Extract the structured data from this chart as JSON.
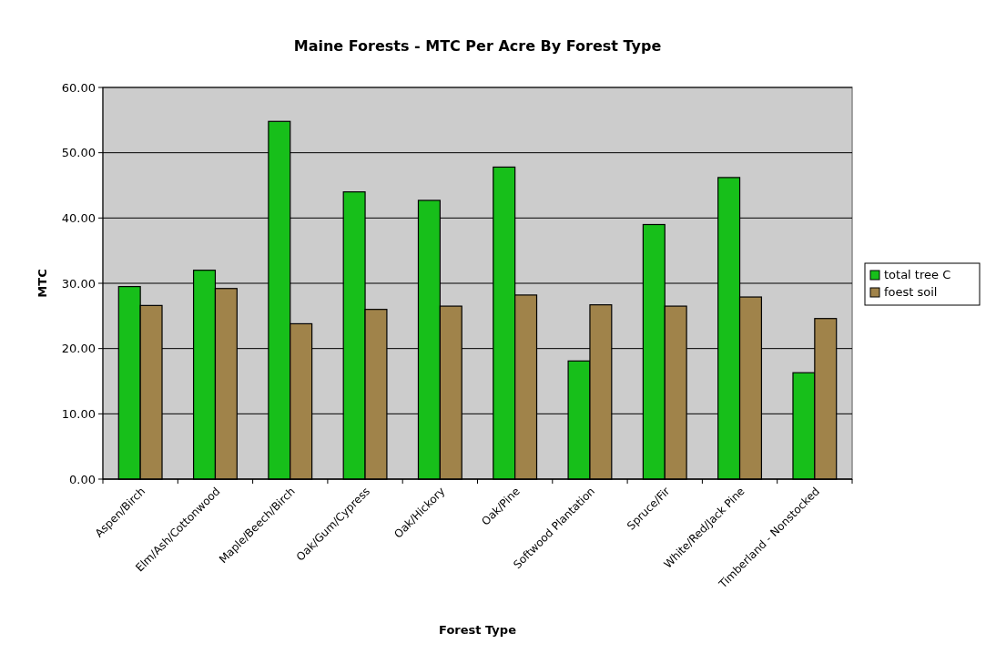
{
  "chart_data": {
    "type": "bar",
    "title": "Maine Forests - MTC Per Acre By Forest Type",
    "xlabel": "Forest Type",
    "ylabel": "MTC",
    "categories": [
      "Aspen/Birch",
      "Elm/Ash/Cottonwood",
      "Maple/Beech/Birch",
      "Oak/Gum/Cypress",
      "Oak/Hickory",
      "Oak/Pine",
      "Softwood Plantation",
      "Spruce/Fir",
      "White/Red/Jack Pine",
      "Timberland - Nonstocked"
    ],
    "series": [
      {
        "name": "total tree C",
        "color": "#17bf1a",
        "values": [
          29.5,
          32.0,
          54.8,
          44.0,
          42.7,
          47.8,
          18.1,
          39.0,
          46.2,
          16.3
        ]
      },
      {
        "name": "foest soil",
        "color": "#a0834a",
        "values": [
          26.6,
          29.2,
          23.8,
          26.0,
          26.5,
          28.2,
          26.7,
          26.5,
          27.9,
          24.6
        ]
      }
    ],
    "ylim": [
      0,
      60
    ],
    "yticks": [
      {
        "value": 0,
        "label": "0.00"
      },
      {
        "value": 10,
        "label": "10.00"
      },
      {
        "value": 20,
        "label": "20.00"
      },
      {
        "value": 30,
        "label": "30.00"
      },
      {
        "value": 40,
        "label": "40.00"
      },
      {
        "value": 50,
        "label": "50.00"
      },
      {
        "value": 60,
        "label": "60.00"
      }
    ],
    "grid": "y",
    "legend": "right"
  }
}
